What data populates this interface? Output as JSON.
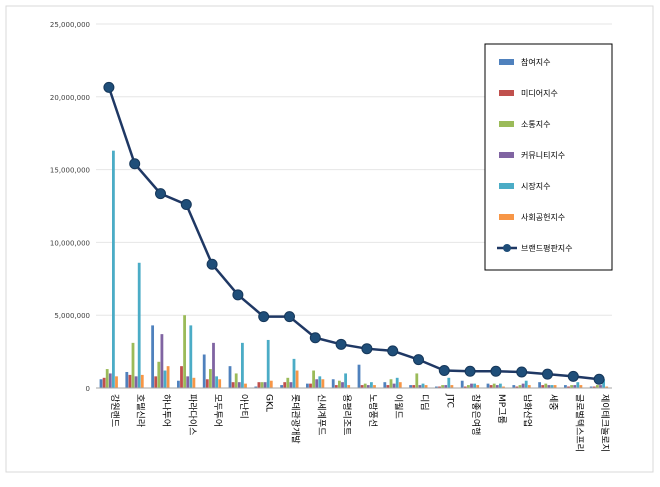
{
  "chart_data": {
    "type": "bar",
    "title": "",
    "xlabel": "",
    "ylabel": "",
    "ylim": [
      0,
      25000000
    ],
    "y_ticks": [
      "25,000,000",
      "20,000,000",
      "15,000,000",
      "10,000,000",
      "5,000,000",
      "0"
    ],
    "y_tick_values": [
      25000000,
      20000000,
      15000000,
      10000000,
      5000000,
      0
    ],
    "categories": [
      "강원랜드",
      "호텔신라",
      "하나투어",
      "파라다이스",
      "모두투어",
      "아난티",
      "GKL",
      "롯데관광개발",
      "신세계푸드",
      "용평리조트",
      "노랑풍선",
      "이월드",
      "디딤",
      "JTC",
      "참좋은여행",
      "MP그룹",
      "남화산업",
      "세중",
      "글로벌텍스프리",
      "제이테크놀로지"
    ],
    "legend_position": "top-right",
    "series": [
      {
        "name": "참여지수",
        "kind": "bar",
        "color": "#4f81bd",
        "values": [
          600000,
          1100000,
          4300000,
          500000,
          2300000,
          1500000,
          100000,
          200000,
          300000,
          600000,
          1600000,
          400000,
          200000,
          100000,
          500000,
          300000,
          200000,
          400000,
          200000,
          100000
        ]
      },
      {
        "name": "미디어지수",
        "kind": "bar",
        "color": "#c0504d",
        "values": [
          700000,
          900000,
          800000,
          1500000,
          600000,
          400000,
          400000,
          400000,
          300000,
          200000,
          200000,
          200000,
          200000,
          100000,
          100000,
          200000,
          100000,
          200000,
          100000,
          100000
        ]
      },
      {
        "name": "소통지수",
        "kind": "bar",
        "color": "#9bbb59",
        "values": [
          1300000,
          3100000,
          1800000,
          5000000,
          1300000,
          1000000,
          400000,
          700000,
          1200000,
          500000,
          300000,
          600000,
          1000000,
          200000,
          200000,
          300000,
          200000,
          300000,
          200000,
          200000
        ]
      },
      {
        "name": "커뮤니티지수",
        "kind": "bar",
        "color": "#8064a2",
        "values": [
          1000000,
          800000,
          3700000,
          800000,
          3100000,
          400000,
          400000,
          400000,
          600000,
          400000,
          200000,
          300000,
          200000,
          200000,
          300000,
          200000,
          300000,
          200000,
          200000,
          200000
        ]
      },
      {
        "name": "시장지수",
        "kind": "bar",
        "color": "#4bacc6",
        "values": [
          16300000,
          8600000,
          1200000,
          4300000,
          800000,
          3100000,
          3300000,
          2000000,
          800000,
          1000000,
          400000,
          700000,
          300000,
          700000,
          300000,
          300000,
          500000,
          200000,
          400000,
          600000
        ]
      },
      {
        "name": "사회공헌지수",
        "kind": "bar",
        "color": "#f79646",
        "values": [
          800000,
          900000,
          1500000,
          700000,
          600000,
          300000,
          500000,
          1200000,
          600000,
          200000,
          200000,
          400000,
          200000,
          200000,
          200000,
          100000,
          200000,
          200000,
          200000,
          100000
        ]
      },
      {
        "name": "브랜드평판지수",
        "kind": "line",
        "color": "#1f3864",
        "values": [
          20650000,
          15400000,
          13350000,
          12600000,
          8500000,
          6400000,
          4900000,
          4900000,
          3450000,
          3000000,
          2700000,
          2550000,
          1950000,
          1200000,
          1150000,
          1150000,
          1100000,
          950000,
          800000,
          600000
        ]
      }
    ]
  }
}
